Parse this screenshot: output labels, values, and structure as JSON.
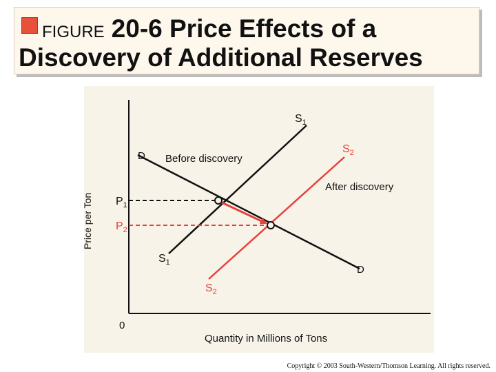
{
  "title": {
    "figure_word": "FIGURE",
    "line1": "20-6 Price Effects of a",
    "line2": "Discovery of Additional Reserves"
  },
  "diagram": {
    "y_axis_label": "Price per Ton",
    "x_axis_label": "Quantity in Millions of Tons",
    "origin_label": "0",
    "before_label": "Before discovery",
    "after_label": "After discovery",
    "demand_label": "D",
    "supply1_label": "S",
    "supply1_sub": "1",
    "supply2_label": "S",
    "supply2_sub": "2",
    "price1_label": "P",
    "price1_sub": "1",
    "price2_label": "P",
    "price2_sub": "2"
  },
  "colors": {
    "accent_red": "#e8413a",
    "axis_black": "#111111",
    "panel_bg": "#f7f3e9"
  },
  "copyright": "Copyright © 2003 South-Western/Thomson Learning. All rights reserved."
}
